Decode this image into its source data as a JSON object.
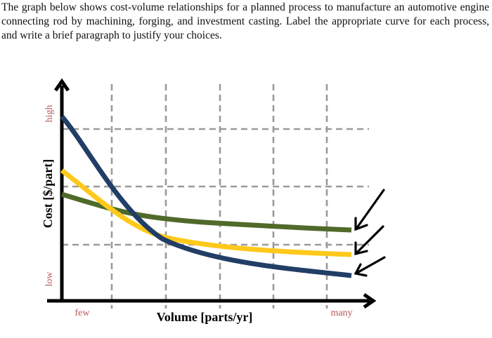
{
  "question": {
    "text": "The graph below shows cost-volume relationships for a planned process to manufacture an automotive engine connecting rod by machining, forging, and investment casting. Label the appropriate curve for each process, and write a brief paragraph to justify your choices."
  },
  "graph": {
    "y_axis_label": "Cost [$/part]",
    "y_high_label": "high",
    "y_low_label": "low",
    "x_axis_label": "Volume [parts/yr]",
    "x_few_label": "few",
    "x_many_label": "many"
  },
  "colors": {
    "end_label": "#b7565a",
    "blue_curve": "#213e66",
    "yellow_curve": "#ffc91c",
    "green_curve": "#4f6a2a",
    "grid": "#9a9a9a",
    "axis": "#000000"
  },
  "chart_data": {
    "type": "line",
    "x_categories": [
      "few",
      "many"
    ],
    "y_categories": [
      "low",
      "high"
    ],
    "series": [
      {
        "color": "#213e66",
        "y": [
          0.92,
          0.13
        ]
      },
      {
        "color": "#ffc91c",
        "y": [
          0.63,
          0.25
        ]
      },
      {
        "color": "#4f6a2a",
        "y": [
          0.53,
          0.37
        ]
      }
    ]
  }
}
